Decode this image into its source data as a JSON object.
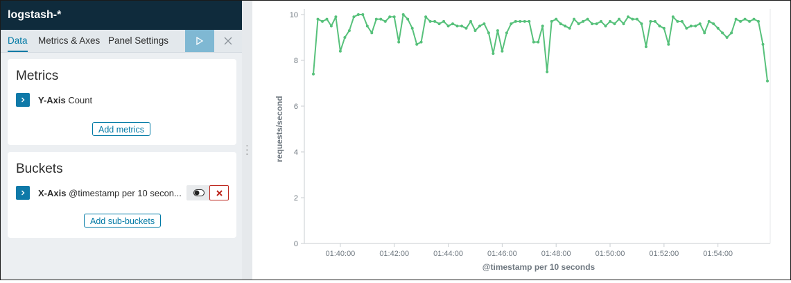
{
  "index_pattern": "logstash-*",
  "tabs": [
    {
      "label": "Data",
      "active": true
    },
    {
      "label": "Metrics & Axes",
      "active": false
    },
    {
      "label": "Panel Settings",
      "active": false
    }
  ],
  "apply_icon": "play-icon",
  "close_icon": "close-icon",
  "metrics": {
    "title": "Metrics",
    "item": {
      "axis": "Y-Axis",
      "agg": "Count"
    },
    "add_button": "Add metrics"
  },
  "buckets": {
    "title": "Buckets",
    "item": {
      "axis": "X-Axis",
      "agg": "@timestamp per 10 secon..."
    },
    "add_button": "Add sub-buckets"
  },
  "colors": {
    "accent": "#0079a5",
    "header": "#0f2b3c",
    "line": "#57c17b",
    "danger": "#bd271e"
  },
  "chart_data": {
    "type": "line",
    "xlabel": "@timestamp per 10 seconds",
    "ylabel": "requests/second",
    "ylim": [
      0,
      10
    ],
    "yticks": [
      "0",
      "2",
      "4",
      "6",
      "8",
      "10"
    ],
    "xticks": [
      "01:40:00",
      "01:42:00",
      "01:44:00",
      "01:46:00",
      "01:48:00",
      "01:50:00",
      "01:52:00",
      "01:54:00"
    ],
    "x_start": "01:39:00",
    "x_interval_seconds": 10,
    "grid": false,
    "series": [
      {
        "values": [
          7.4,
          9.8,
          9.7,
          9.8,
          9.5,
          9.9,
          8.4,
          9.0,
          9.3,
          9.9,
          10.0,
          10.0,
          9.5,
          9.2,
          9.8,
          9.8,
          9.7,
          9.9,
          9.9,
          8.8,
          10.0,
          9.8,
          9.4,
          8.7,
          8.8,
          9.9,
          9.7,
          9.7,
          9.6,
          9.7,
          9.5,
          9.6,
          9.5,
          9.5,
          9.4,
          9.7,
          9.3,
          9.5,
          9.6,
          9.2,
          8.3,
          9.3,
          8.4,
          9.2,
          9.6,
          9.7,
          9.7,
          9.7,
          9.7,
          8.8,
          8.8,
          9.5,
          7.5,
          9.7,
          9.8,
          9.6,
          9.5,
          9.4,
          9.8,
          9.6,
          9.7,
          9.8,
          9.6,
          9.6,
          9.7,
          9.5,
          9.7,
          9.6,
          9.8,
          9.6,
          9.9,
          9.8,
          9.8,
          9.6,
          8.6,
          9.7,
          9.7,
          9.5,
          9.4,
          8.7,
          9.9,
          9.7,
          9.7,
          9.4,
          9.5,
          9.5,
          9.6,
          9.2,
          9.7,
          9.6,
          9.4,
          9.2,
          9.0,
          9.2,
          9.8,
          9.7,
          9.8,
          9.7,
          9.8,
          9.7,
          8.7,
          7.1
        ]
      }
    ]
  }
}
